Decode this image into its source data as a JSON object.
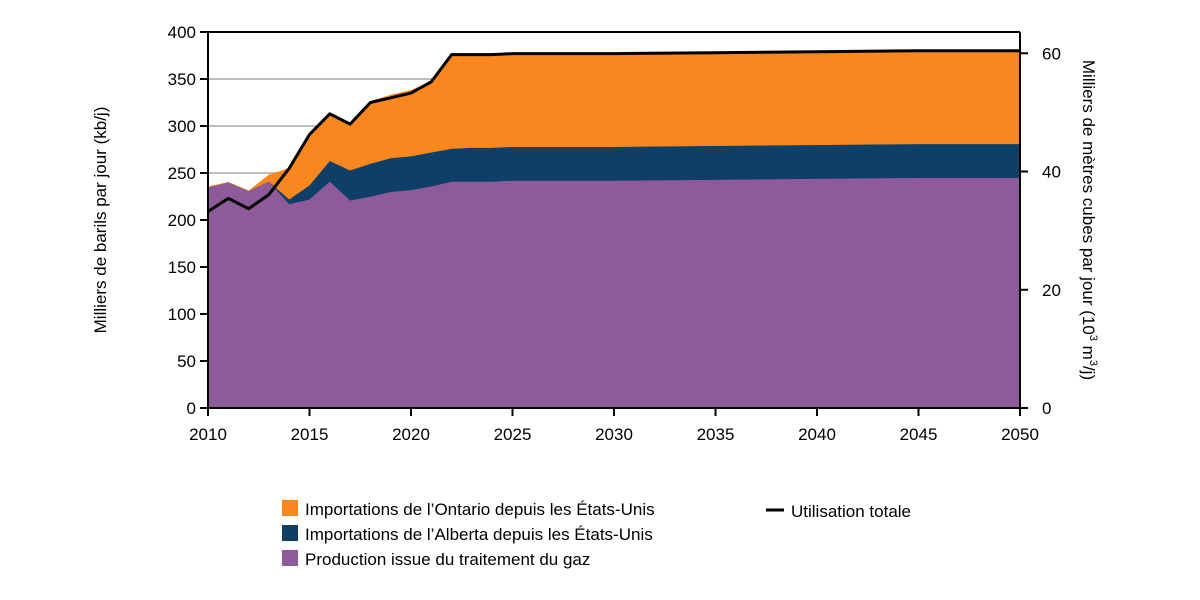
{
  "chart_data": {
    "type": "area",
    "title": "",
    "xlabel": "",
    "ylabel": "Milliers de barils par jour (kb/j)",
    "ylabel_right": {
      "base": "Milliers de mètres cubes par jour (10",
      "sup1": "3",
      "mid": " m",
      "sup2": "3",
      "end": "/j)"
    },
    "xlim": [
      2010,
      2050
    ],
    "ylim": [
      0,
      400
    ],
    "ylim_right": [
      0,
      63.6
    ],
    "x_ticks": [
      "2010",
      "2015",
      "2020",
      "2025",
      "2030",
      "2035",
      "2040",
      "2045",
      "2050"
    ],
    "y_ticks": [
      "0",
      "50",
      "100",
      "150",
      "200",
      "250",
      "300",
      "350",
      "400"
    ],
    "y_right_ticks": [
      "0",
      "20",
      "40",
      "60"
    ],
    "grid": true,
    "legend": "bottom",
    "years": [
      2010,
      2011,
      2012,
      2013,
      2014,
      2015,
      2016,
      2017,
      2018,
      2019,
      2020,
      2021,
      2022,
      2023,
      2024,
      2025,
      2030,
      2035,
      2040,
      2045,
      2050
    ],
    "series": [
      {
        "name": "Production issue du traitement du gaz",
        "color": "#8e5a9a",
        "values": [
          235,
          240,
          231,
          241,
          217,
          222,
          241,
          221,
          225,
          230,
          232,
          236,
          241,
          241,
          241,
          242,
          242,
          243,
          244,
          245,
          245
        ]
      },
      {
        "name": "Importations de l’Alberta depuis les États-Unis",
        "color": "#0e3f66",
        "values": [
          0,
          0,
          0,
          0,
          5,
          15,
          22,
          32,
          35,
          36,
          36,
          36,
          35,
          36,
          36,
          36,
          36,
          36,
          36,
          36,
          36
        ]
      },
      {
        "name": "Importations de l’Ontario depuis les États-Unis",
        "color": "#f7871e",
        "values": [
          0,
          0,
          0,
          7,
          33,
          55,
          50,
          48,
          66,
          67,
          70,
          75,
          100,
          99,
          99,
          99,
          99,
          99,
          99,
          99,
          99
        ]
      }
    ],
    "line": {
      "name": "Utilisation totale",
      "color": "#000000",
      "values": [
        209,
        223,
        212,
        227,
        255,
        291,
        313,
        302,
        325,
        330,
        335,
        347,
        376,
        376,
        376,
        377,
        377,
        378,
        379,
        380,
        380
      ]
    }
  }
}
